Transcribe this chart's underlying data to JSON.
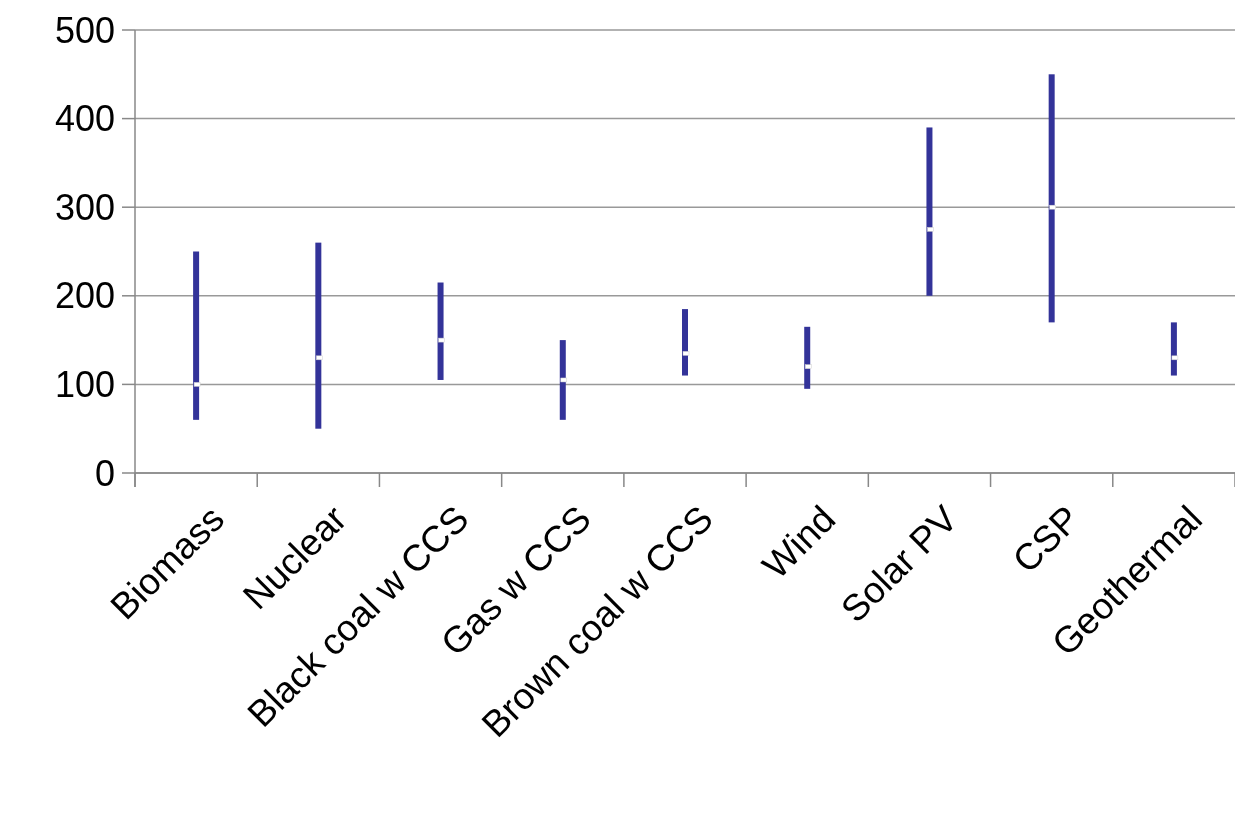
{
  "chart_data": {
    "type": "bar",
    "categories": [
      "Biomass",
      "Nuclear",
      "Black coal w CCS",
      "Gas w CCS",
      "Brown coal w CCS",
      "Wind",
      "Solar PV",
      "CSP",
      "Geothermal"
    ],
    "series": [
      {
        "color": "#333399",
        "base": [
          60,
          50,
          105,
          60,
          110,
          95,
          200,
          170,
          110
        ],
        "values": [
          190,
          210,
          110,
          90,
          75,
          70,
          190,
          280,
          60
        ]
      },
      {
        "type": "scatter",
        "color": "#ffffff",
        "marker": "square",
        "x": [
          "Biomass",
          "Nuclear",
          "Black coal w CCS",
          "Gas w CCS",
          "Brown coal w CCS",
          "Wind",
          "Solar PV",
          "CSP",
          "Geothermal"
        ],
        "values": [
          100,
          130,
          150,
          105,
          135,
          120,
          275,
          300,
          130
        ]
      }
    ],
    "ylim": [
      0,
      500
    ],
    "yticks": [
      0,
      100,
      200,
      300,
      400,
      500
    ],
    "grid": "y"
  }
}
